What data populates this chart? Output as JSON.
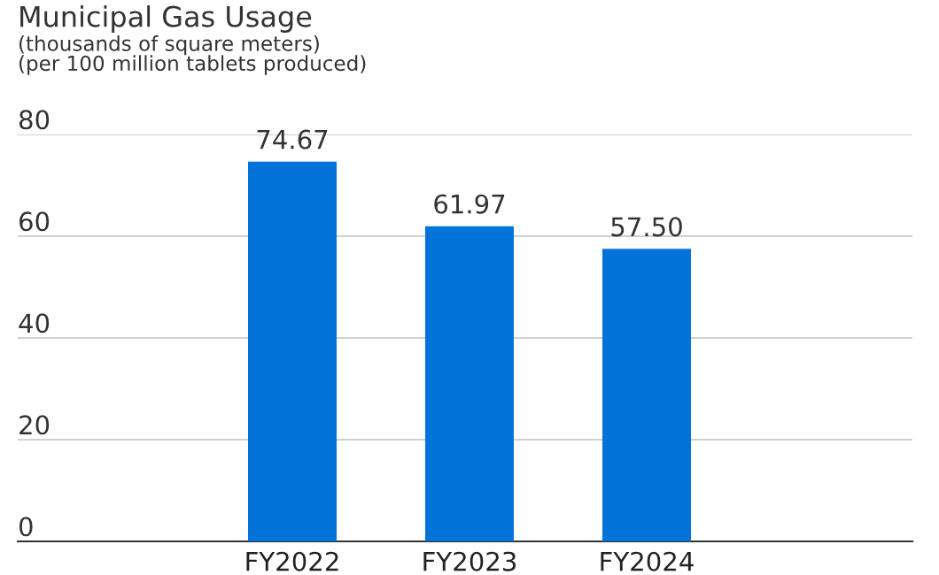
{
  "chart_data": {
    "type": "bar",
    "title": "Municipal Gas Usage",
    "subtitle": "(thousands of square meters)\n(per 100 million tablets produced)",
    "categories": [
      "FY2022",
      "FY2023",
      "FY2024"
    ],
    "values": [
      74.67,
      61.97,
      57.5
    ],
    "value_labels": [
      "74.67",
      "61.97",
      "57.50"
    ],
    "color": "#0373d9",
    "ylim": [
      0,
      80
    ],
    "yticks": [
      0,
      20,
      40,
      60,
      80
    ],
    "grid": "y"
  }
}
